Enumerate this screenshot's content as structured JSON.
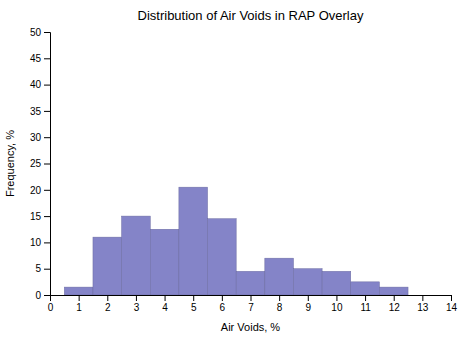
{
  "chart_data": {
    "type": "bar",
    "title": "Distribution of Air Voids in RAP Overlay",
    "xlabel": "Air Voids, %",
    "ylabel": "Frequency, %",
    "x": [
      1,
      2,
      3,
      4,
      5,
      6,
      7,
      8,
      9,
      10,
      11,
      12
    ],
    "values": [
      1.5,
      11,
      15,
      12.5,
      20.5,
      14.5,
      4.5,
      7,
      5,
      4.5,
      2.5,
      1.5
    ],
    "color": "#8484c8",
    "xlim": [
      0,
      14
    ],
    "xticks": [
      0,
      1,
      2,
      3,
      4,
      5,
      6,
      7,
      8,
      9,
      10,
      11,
      12,
      13,
      14
    ],
    "ylim": [
      0,
      50
    ],
    "yticks": [
      0,
      5,
      10,
      15,
      20,
      25,
      30,
      35,
      40,
      45,
      50
    ],
    "grid": false
  }
}
